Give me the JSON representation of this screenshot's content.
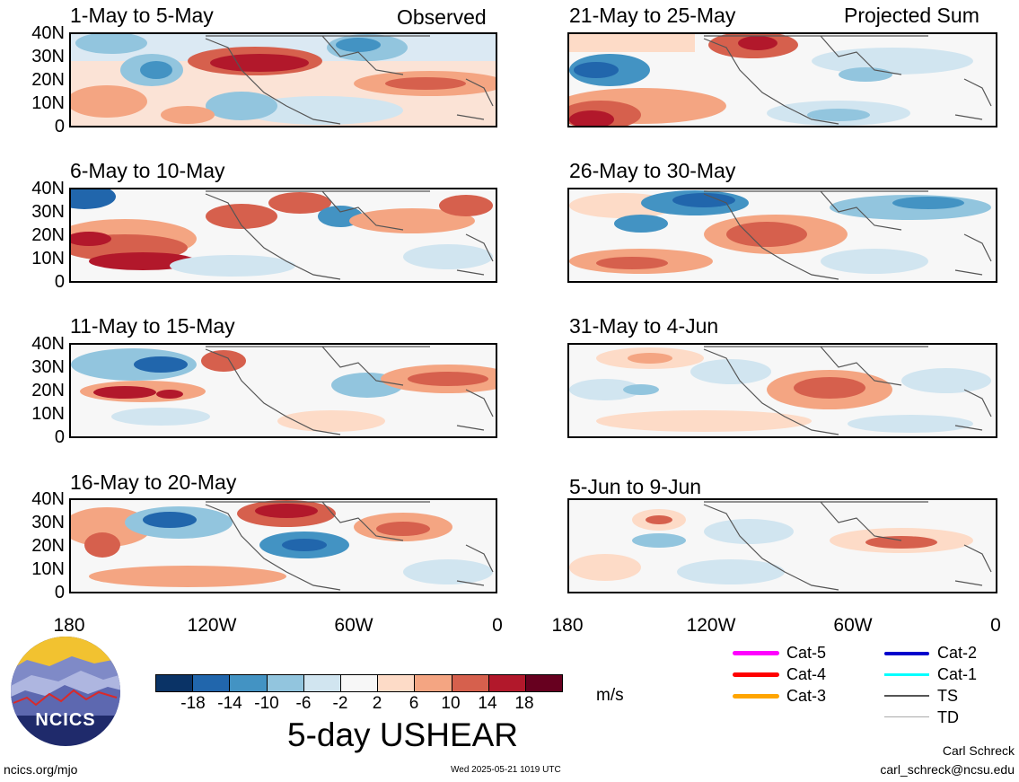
{
  "panels": [
    {
      "title": "1-May to 5-May",
      "label": "Observed"
    },
    {
      "title": "21-May to 25-May",
      "label": "Projected Sum"
    },
    {
      "title": "6-May to 10-May",
      "label": ""
    },
    {
      "title": "26-May to 30-May",
      "label": ""
    },
    {
      "title": "11-May to 15-May",
      "label": ""
    },
    {
      "title": "31-May to 4-Jun",
      "label": ""
    },
    {
      "title": "16-May to 20-May",
      "label": ""
    },
    {
      "title": "5-Jun to 9-Jun",
      "label": ""
    }
  ],
  "y_ticks": [
    "40N",
    "30N",
    "20N",
    "10N",
    "0"
  ],
  "x_ticks": [
    "180",
    "120W",
    "60W",
    "0"
  ],
  "colorbar": {
    "labels": [
      "-18",
      "-14",
      "-10",
      "-6",
      "-2",
      "2",
      "6",
      "10",
      "14",
      "18"
    ],
    "colors": [
      "#0a3366",
      "#2166ac",
      "#4393c3",
      "#92c5de",
      "#d1e5f0",
      "#f7f7f7",
      "#fddbc7",
      "#f4a582",
      "#d6604d",
      "#b2182b",
      "#67001f"
    ],
    "units": "m/s"
  },
  "main_title": "5-day USHEAR",
  "logo_text": "NCICS",
  "site": "ncics.org/mjo",
  "timestamp": "Wed 2025-05-21 1019 UTC",
  "author": "Carl Schreck",
  "email": "carl_schreck@ncsu.edu",
  "track_legend": [
    {
      "label": "Cat-5",
      "color": "#ff00ff"
    },
    {
      "label": "Cat-4",
      "color": "#ff0000"
    },
    {
      "label": "Cat-3",
      "color": "#ffa500"
    },
    {
      "label": "Cat-2",
      "color": "#0000cc"
    },
    {
      "label": "Cat-1",
      "color": "#00ffff"
    },
    {
      "label": "TS",
      "color": "#555555"
    },
    {
      "label": "TD",
      "color": "#aaaaaa"
    }
  ]
}
